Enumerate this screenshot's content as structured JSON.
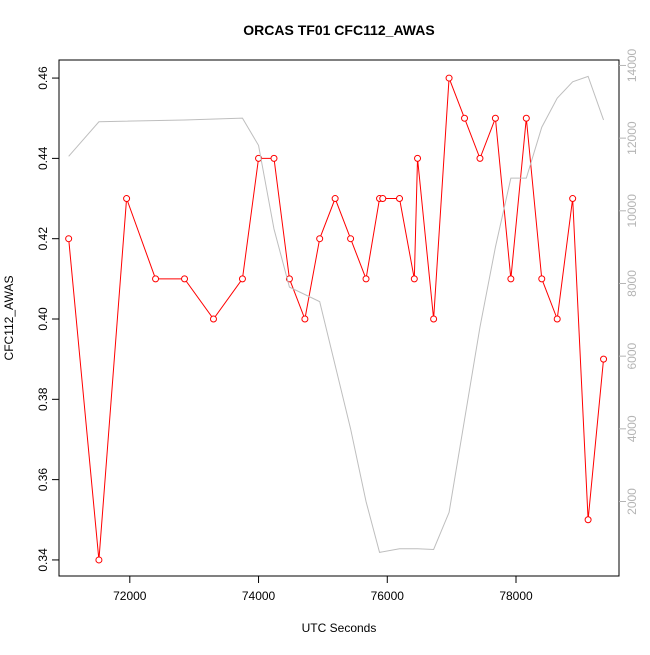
{
  "chart_data": {
    "type": "line",
    "title": "ORCAS TF01 CFC112_AWAS",
    "xlabel": "UTC Seconds",
    "ylabel": "CFC112_AWAS",
    "y2label": "",
    "xlim": [
      70900,
      79600
    ],
    "ylim": [
      0.336,
      0.4645
    ],
    "y2lim": [
      -50,
      14150
    ],
    "x_ticks": [
      72000,
      74000,
      76000,
      78000
    ],
    "x_tick_labels": [
      "72000",
      "74000",
      "76000",
      "78000"
    ],
    "y_ticks": [
      0.34,
      0.36,
      0.38,
      0.4,
      0.42,
      0.44,
      0.46
    ],
    "y_tick_labels": [
      "0.34",
      "0.36",
      "0.38",
      "0.40",
      "0.42",
      "0.44",
      "0.46"
    ],
    "y2_ticks": [
      2000,
      4000,
      6000,
      8000,
      10000,
      12000,
      14000
    ],
    "y2_tick_labels": [
      "2000",
      "4000",
      "6000",
      "8000",
      "10000",
      "12000",
      "14000"
    ],
    "grid": false,
    "series": [
      {
        "color": "#ff0000",
        "axis": "left",
        "markers": "open-circle",
        "x": [
          71050,
          71520,
          71950,
          72400,
          72850,
          73300,
          73750,
          74000,
          74240,
          74480,
          74720,
          74950,
          75190,
          75430,
          75670,
          75880,
          75930,
          76190,
          76420,
          76470,
          76720,
          76960,
          77200,
          77440,
          77680,
          77920,
          78160,
          78400,
          78640,
          78880,
          79120,
          79360
        ],
        "y": [
          0.42,
          0.34,
          0.43,
          0.41,
          0.41,
          0.4,
          0.41,
          0.44,
          0.44,
          0.41,
          0.4,
          0.42,
          0.43,
          0.42,
          0.41,
          0.43,
          0.43,
          0.43,
          0.41,
          0.44,
          0.4,
          0.46,
          0.45,
          0.44,
          0.45,
          0.41,
          0.45,
          0.41,
          0.4,
          0.43,
          0.35,
          0.39
        ]
      },
      {
        "color": "#bebebe",
        "axis": "right",
        "markers": "none",
        "x": [
          71050,
          71520,
          72850,
          73750,
          74000,
          74240,
          74480,
          74950,
          75430,
          75670,
          75880,
          76190,
          76470,
          76720,
          76960,
          77440,
          77680,
          77920,
          78160,
          78400,
          78640,
          78880,
          79120,
          79360
        ],
        "y": [
          11500,
          12450,
          12500,
          12550,
          11800,
          9500,
          7900,
          7500,
          4000,
          2000,
          600,
          700,
          700,
          680,
          1700,
          6800,
          9000,
          10900,
          10900,
          12300,
          13100,
          13550,
          13700,
          12500
        ]
      }
    ]
  }
}
